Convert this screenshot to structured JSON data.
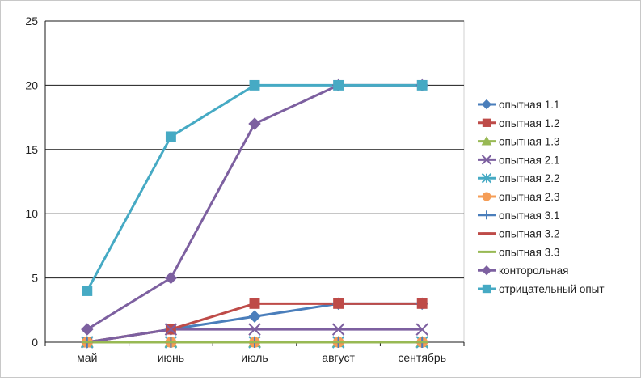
{
  "chart_data": {
    "type": "line",
    "title": "",
    "xlabel": "",
    "ylabel": "",
    "categories": [
      "май",
      "июнь",
      "июль",
      "август",
      "сентябрь"
    ],
    "ylim": [
      0,
      25
    ],
    "yticks": [
      0,
      5,
      10,
      15,
      20,
      25
    ],
    "grid": "horizontal",
    "legend_position": "right",
    "series": [
      {
        "name": "опытная 1.1",
        "values": [
          0,
          1,
          2,
          3,
          3
        ],
        "color": "#4a7ebb",
        "marker": "diamond"
      },
      {
        "name": "опытная 1.2",
        "values": [
          0,
          1,
          3,
          3,
          3
        ],
        "color": "#be4b48",
        "marker": "square"
      },
      {
        "name": "опытная 1.3",
        "values": [
          0,
          0,
          0,
          0,
          0
        ],
        "color": "#98b954",
        "marker": "triangle"
      },
      {
        "name": "опытная 2.1",
        "values": [
          0,
          1,
          1,
          1,
          1
        ],
        "color": "#7d60a0",
        "marker": "x"
      },
      {
        "name": "опытная 2.2",
        "values": [
          0,
          0,
          0,
          0,
          0
        ],
        "color": "#46aac4",
        "marker": "star"
      },
      {
        "name": "опытная 2.3",
        "values": [
          0,
          0,
          0,
          0,
          0
        ],
        "color": "#f59d56",
        "marker": "circle"
      },
      {
        "name": "опытная 3.1",
        "values": [
          0,
          0,
          0,
          0,
          0
        ],
        "color": "#4a7ebb",
        "marker": "plus"
      },
      {
        "name": "опытная 3.2",
        "values": [
          0,
          0,
          0,
          0,
          0
        ],
        "color": "#be4b48",
        "marker": "dash"
      },
      {
        "name": "опытная 3.3",
        "values": [
          0,
          0,
          0,
          0,
          0
        ],
        "color": "#98b954",
        "marker": "dash"
      },
      {
        "name": "конторольная",
        "values": [
          1,
          5,
          17,
          20,
          20
        ],
        "color": "#7d60a0",
        "marker": "diamond"
      },
      {
        "name": "отрицательный опыт",
        "values": [
          4,
          16,
          20,
          20,
          20
        ],
        "color": "#46aac4",
        "marker": "square"
      }
    ]
  }
}
